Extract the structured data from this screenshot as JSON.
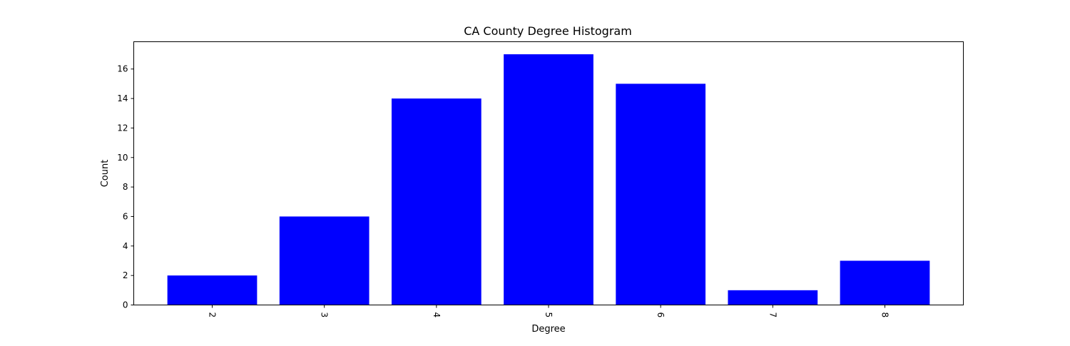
{
  "chart_data": {
    "type": "bar",
    "title": "CA County Degree Histogram",
    "xlabel": "Degree",
    "ylabel": "Count",
    "categories": [
      "2",
      "3",
      "4",
      "5",
      "6",
      "7",
      "8"
    ],
    "values": [
      2,
      6,
      14,
      17,
      15,
      1,
      3
    ],
    "yticks": [
      "0",
      "2",
      "4",
      "6",
      "8",
      "10",
      "12",
      "14",
      "16"
    ],
    "ylim": [
      0,
      17.85
    ],
    "xtick_rotation": "rotated",
    "bar_color": "#0000ff",
    "grid": false,
    "legend": "none"
  }
}
